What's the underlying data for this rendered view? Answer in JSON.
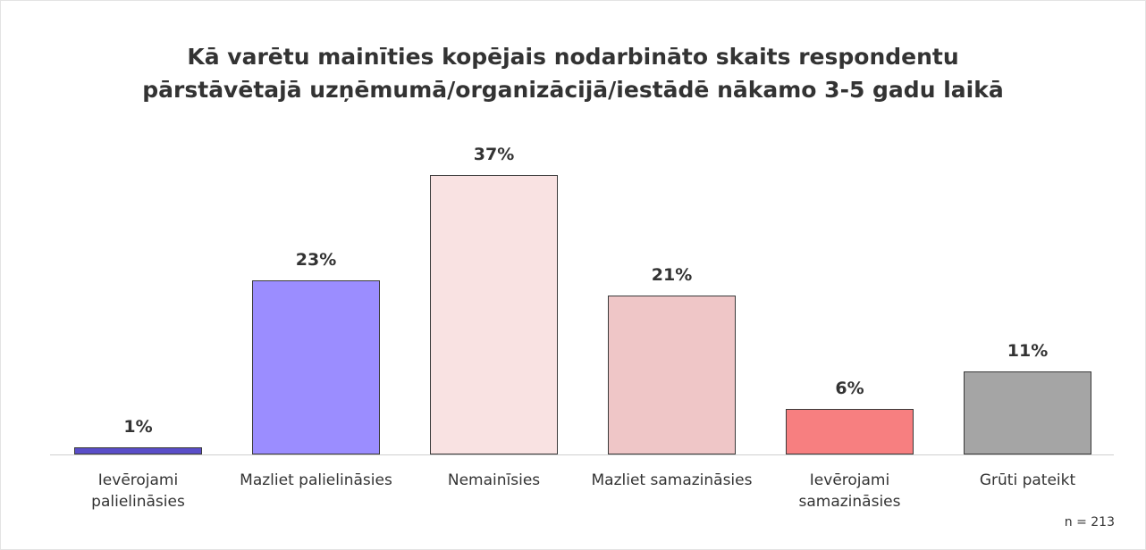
{
  "chart_data": {
    "type": "bar",
    "title": "Kā varētu mainīties kopējais nodarbināto skaits respondentu pārstāvētajā uzņēmumā/organizācijā/iestādē nākamo 3-5 gadu laikā",
    "categories": [
      "Ievērojami palielināsies",
      "Mazliet palielināsies",
      "Nemainīsies",
      "Mazliet samazināsies",
      "Ievērojami samazināsies",
      "Grūti pateikt"
    ],
    "values": [
      1,
      23,
      37,
      21,
      6,
      11
    ],
    "value_labels": [
      "1%",
      "23%",
      "37%",
      "21%",
      "6%",
      "11%"
    ],
    "colors": [
      "#5a4ec8",
      "#9b8dff",
      "#f9e2e2",
      "#efc6c7",
      "#f77f80",
      "#a5a5a5"
    ],
    "note": "n = 213"
  }
}
